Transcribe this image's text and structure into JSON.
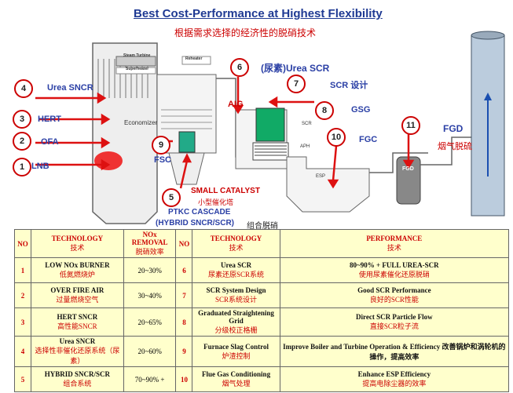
{
  "title": "Best Cost-Performance at Highest Flexibility",
  "subtitle": "根据需求选择的经济性的脱硝技术",
  "diagram": {
    "steam_turbine": "Steam Turbine",
    "superheater": "Superheater",
    "reheater": "Reheater",
    "economizer": "Economizer",
    "scr": "SCR",
    "aph": "APH",
    "esp": "ESP",
    "fgd": "FGD",
    "labels": {
      "urea_sncr": "Urea SNCR",
      "hert": "HERT",
      "ofa": "OFA",
      "lnb": "LNB",
      "fsc": "FSC",
      "aig": "AIG",
      "urea_scr": "(尿素)Urea SCR",
      "scr_design": "SCR 设计",
      "gsg": "GSG",
      "fgc": "FGC",
      "fgd_en": "FGD",
      "fgd_cn": "烟气脱硫",
      "small_catalyst": "SMALL  CATALYST",
      "small_catalyst_cn": "小型催化塔",
      "ptkc": "PTKC   CASCADE",
      "hybrid": "(HYBRID SNCR/SCR)",
      "hybrid_cn": "组合脱硝"
    },
    "numbers": [
      "1",
      "2",
      "3",
      "4",
      "5",
      "6",
      "7",
      "8",
      "9",
      "10",
      "11"
    ]
  },
  "table": {
    "headers": [
      {
        "en": "NO",
        "cn": ""
      },
      {
        "en": "TECHNOLOGY",
        "cn": "技术"
      },
      {
        "en": "NOx REMOVAL",
        "cn": "脱硝效率"
      },
      {
        "en": "NO",
        "cn": ""
      },
      {
        "en": "TECHNOLOGY",
        "cn": "技术"
      },
      {
        "en": "PERFORMANCE",
        "cn": "技术"
      }
    ],
    "rows": [
      {
        "no1": "1",
        "tech1": "LOW NOx BURNER",
        "tech1_cn": "低氮燃烧炉",
        "removal": "20~30%",
        "no2": "6",
        "tech2": "Urea SCR",
        "tech2_cn": "尿素还原SCR系统",
        "perf": "80~90% + FULL UREA-SCR",
        "perf_cn": "使用尿素催化还原脱硝"
      },
      {
        "no1": "2",
        "tech1": "OVER FIRE AIR",
        "tech1_cn": "过量燃烧空气",
        "removal": "30~40%",
        "no2": "7",
        "tech2": "SCR System Design",
        "tech2_cn": "SCR系统设计",
        "perf": "Good SCR Performance",
        "perf_cn": "良好的SCR性能"
      },
      {
        "no1": "3",
        "tech1": "HERT SNCR",
        "tech1_cn": "高性能SNCR",
        "removal": "20~65%",
        "no2": "8",
        "tech2": "Graduated Straightening Grid",
        "tech2_cn": "分级校正格栅",
        "perf": "Direct SCR Particle Flow",
        "perf_cn": "直接SCR粒子流"
      },
      {
        "no1": "4",
        "tech1": "Urea SNCR",
        "tech1_cn": "选择性非催化还原系统（尿素）",
        "removal": "20~60%",
        "no2": "9",
        "tech2": "Furnace Slag  Control",
        "tech2_cn": "炉渣控制",
        "perf": "Improve Boiler and Turbine Operation & Efficiency 改善锅炉和涡轮机的操作，提高效率",
        "perf_cn": ""
      },
      {
        "no1": "5",
        "tech1": "HYBRID SNCR/SCR",
        "tech1_cn": "组合系统",
        "removal": "70~90% +",
        "no2": "10",
        "tech2": "Flue Gas Conditioning",
        "tech2_cn": "烟气处理",
        "perf": "Enhance ESP Efficiency",
        "perf_cn": "提高电除尘器的效率"
      }
    ]
  }
}
